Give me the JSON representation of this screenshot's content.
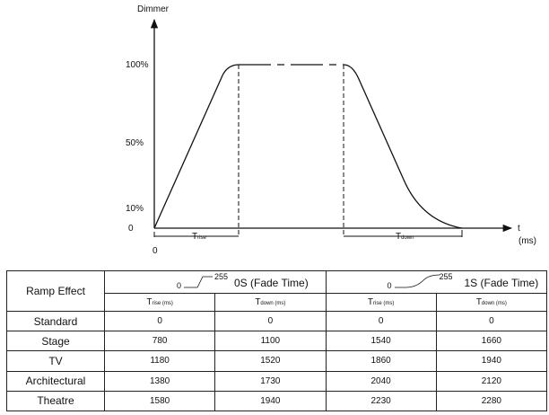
{
  "diagram": {
    "y_axis_label": "Dimmer",
    "x_axis_label": "t",
    "x_axis_unit": "(ms)",
    "origin_label": "0",
    "y_ticks": [
      "100%",
      "50%",
      "10%",
      "0"
    ],
    "t_rise": {
      "main": "T",
      "sub": "rise"
    },
    "t_down": {
      "main": "T",
      "sub": "down"
    }
  },
  "table": {
    "corner_label": "Ramp Effect",
    "groups": [
      {
        "low": "0",
        "high": "255",
        "label": "0S  (Fade Time)"
      },
      {
        "low": "0",
        "high": "255",
        "label": "1S  (Fade Time)"
      }
    ],
    "subheaders": [
      {
        "main": "T",
        "sub": "rise (ms)"
      },
      {
        "main": "T",
        "sub": "down (ms)"
      },
      {
        "main": "T",
        "sub": "rise (ms)"
      },
      {
        "main": "T",
        "sub": "down (ms)"
      }
    ],
    "rows": [
      {
        "name": "Standard",
        "values": [
          "0",
          "0",
          "0",
          "0"
        ]
      },
      {
        "name": "Stage",
        "values": [
          "780",
          "1100",
          "1540",
          "1660"
        ]
      },
      {
        "name": "TV",
        "values": [
          "1180",
          "1520",
          "1860",
          "1940"
        ]
      },
      {
        "name": "Architectural",
        "values": [
          "1380",
          "1730",
          "2040",
          "2120"
        ]
      },
      {
        "name": "Theatre",
        "values": [
          "1580",
          "1940",
          "2230",
          "2280"
        ]
      }
    ]
  }
}
